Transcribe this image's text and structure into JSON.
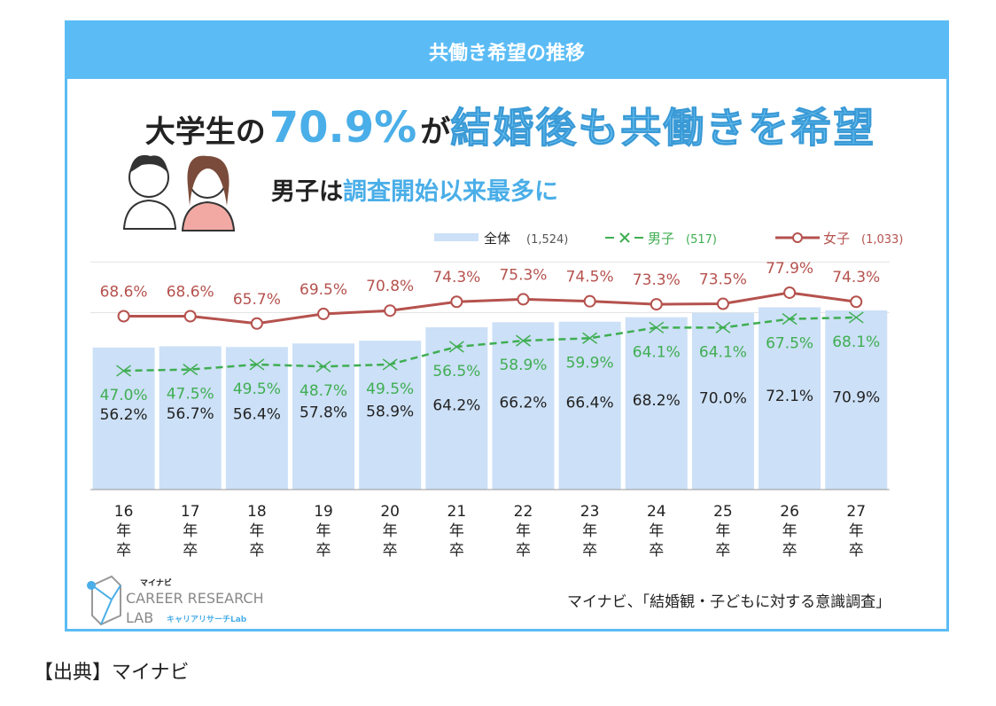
{
  "banner_title": "共働き希望の推移",
  "headline": {
    "part1": "大学生の",
    "number": "70.9%",
    "part2": "が",
    "emphasis": "結婚後も共働きを希望"
  },
  "subheadline": {
    "part1": "男子は",
    "emphasis": "調査開始以来最多に"
  },
  "source": "マイナビ、「結婚観・子どもに対する意識調査」",
  "citation": "【出典】マイナビ",
  "logo": {
    "brand": "マイナビ",
    "line1": "CAREER RESEARCH",
    "line2": "LAB",
    "kana": "キャリアリサーチLab"
  },
  "colors": {
    "all": "#cce0f7",
    "men": "#3fae52",
    "women": "#b5524e",
    "frame": "#5bbcf5"
  },
  "chart_data": {
    "type": "bar+line",
    "categories": [
      "16\n年\n卒",
      "17\n年\n卒",
      "18\n年\n卒",
      "19\n年\n卒",
      "20\n年\n卒",
      "21\n年\n卒",
      "22\n年\n卒",
      "23\n年\n卒",
      "24\n年\n卒",
      "25\n年\n卒",
      "26\n年\n卒",
      "27\n年\n卒"
    ],
    "series": [
      {
        "name": "全体",
        "n": "(1,524)",
        "type": "bar",
        "values": [
          56.2,
          56.7,
          56.4,
          57.8,
          58.9,
          64.2,
          66.2,
          66.4,
          68.2,
          70.0,
          72.1,
          70.9
        ],
        "labels": [
          "56.2%",
          "56.7%",
          "56.4%",
          "57.8%",
          "58.9%",
          "64.2%",
          "66.2%",
          "66.4%",
          "68.2%",
          "70.0%",
          "72.1%",
          "70.9%"
        ]
      },
      {
        "name": "男子",
        "n": "(517)",
        "type": "line-dashed-x",
        "values": [
          47.0,
          47.5,
          49.5,
          48.7,
          49.5,
          56.5,
          58.9,
          59.9,
          64.1,
          64.1,
          67.5,
          68.1
        ],
        "labels": [
          "47.0%",
          "47.5%",
          "49.5%",
          "48.7%",
          "49.5%",
          "56.5%",
          "58.9%",
          "59.9%",
          "64.1%",
          "64.1%",
          "67.5%",
          "68.1%"
        ]
      },
      {
        "name": "女子",
        "n": "(1,033)",
        "type": "line-circle",
        "values": [
          68.6,
          68.6,
          65.7,
          69.5,
          70.8,
          74.3,
          75.3,
          74.5,
          73.3,
          73.5,
          77.9,
          74.3
        ],
        "labels": [
          "68.6%",
          "68.6%",
          "65.7%",
          "69.5%",
          "70.8%",
          "74.3%",
          "75.3%",
          "74.5%",
          "73.3%",
          "73.5%",
          "77.9%",
          "74.3%"
        ]
      }
    ],
    "legend": "top-right",
    "ylim": [
      0,
      100
    ],
    "grid": true
  }
}
